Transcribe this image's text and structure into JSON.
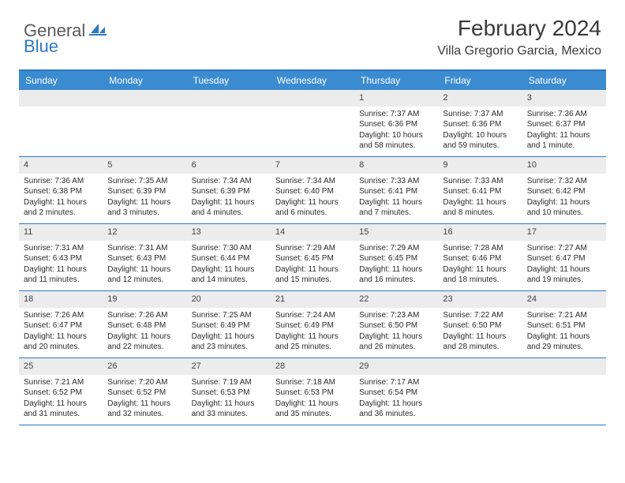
{
  "logo": {
    "general": "General",
    "blue": "Blue"
  },
  "title": "February 2024",
  "location": "Villa Gregorio Garcia, Mexico",
  "colors": {
    "header_bg": "#3b8bd0",
    "border": "#2e78c0",
    "daynum_bg": "#ececec",
    "text": "#2b2b2b"
  },
  "day_names": [
    "Sunday",
    "Monday",
    "Tuesday",
    "Wednesday",
    "Thursday",
    "Friday",
    "Saturday"
  ],
  "weeks": [
    [
      {
        "num": "",
        "lines": []
      },
      {
        "num": "",
        "lines": []
      },
      {
        "num": "",
        "lines": []
      },
      {
        "num": "",
        "lines": []
      },
      {
        "num": "1",
        "lines": [
          "Sunrise: 7:37 AM",
          "Sunset: 6:36 PM",
          "Daylight: 10 hours",
          "and 58 minutes."
        ]
      },
      {
        "num": "2",
        "lines": [
          "Sunrise: 7:37 AM",
          "Sunset: 6:36 PM",
          "Daylight: 10 hours",
          "and 59 minutes."
        ]
      },
      {
        "num": "3",
        "lines": [
          "Sunrise: 7:36 AM",
          "Sunset: 6:37 PM",
          "Daylight: 11 hours",
          "and 1 minute."
        ]
      }
    ],
    [
      {
        "num": "4",
        "lines": [
          "Sunrise: 7:36 AM",
          "Sunset: 6:38 PM",
          "Daylight: 11 hours",
          "and 2 minutes."
        ]
      },
      {
        "num": "5",
        "lines": [
          "Sunrise: 7:35 AM",
          "Sunset: 6:39 PM",
          "Daylight: 11 hours",
          "and 3 minutes."
        ]
      },
      {
        "num": "6",
        "lines": [
          "Sunrise: 7:34 AM",
          "Sunset: 6:39 PM",
          "Daylight: 11 hours",
          "and 4 minutes."
        ]
      },
      {
        "num": "7",
        "lines": [
          "Sunrise: 7:34 AM",
          "Sunset: 6:40 PM",
          "Daylight: 11 hours",
          "and 6 minutes."
        ]
      },
      {
        "num": "8",
        "lines": [
          "Sunrise: 7:33 AM",
          "Sunset: 6:41 PM",
          "Daylight: 11 hours",
          "and 7 minutes."
        ]
      },
      {
        "num": "9",
        "lines": [
          "Sunrise: 7:33 AM",
          "Sunset: 6:41 PM",
          "Daylight: 11 hours",
          "and 8 minutes."
        ]
      },
      {
        "num": "10",
        "lines": [
          "Sunrise: 7:32 AM",
          "Sunset: 6:42 PM",
          "Daylight: 11 hours",
          "and 10 minutes."
        ]
      }
    ],
    [
      {
        "num": "11",
        "lines": [
          "Sunrise: 7:31 AM",
          "Sunset: 6:43 PM",
          "Daylight: 11 hours",
          "and 11 minutes."
        ]
      },
      {
        "num": "12",
        "lines": [
          "Sunrise: 7:31 AM",
          "Sunset: 6:43 PM",
          "Daylight: 11 hours",
          "and 12 minutes."
        ]
      },
      {
        "num": "13",
        "lines": [
          "Sunrise: 7:30 AM",
          "Sunset: 6:44 PM",
          "Daylight: 11 hours",
          "and 14 minutes."
        ]
      },
      {
        "num": "14",
        "lines": [
          "Sunrise: 7:29 AM",
          "Sunset: 6:45 PM",
          "Daylight: 11 hours",
          "and 15 minutes."
        ]
      },
      {
        "num": "15",
        "lines": [
          "Sunrise: 7:29 AM",
          "Sunset: 6:45 PM",
          "Daylight: 11 hours",
          "and 16 minutes."
        ]
      },
      {
        "num": "16",
        "lines": [
          "Sunrise: 7:28 AM",
          "Sunset: 6:46 PM",
          "Daylight: 11 hours",
          "and 18 minutes."
        ]
      },
      {
        "num": "17",
        "lines": [
          "Sunrise: 7:27 AM",
          "Sunset: 6:47 PM",
          "Daylight: 11 hours",
          "and 19 minutes."
        ]
      }
    ],
    [
      {
        "num": "18",
        "lines": [
          "Sunrise: 7:26 AM",
          "Sunset: 6:47 PM",
          "Daylight: 11 hours",
          "and 20 minutes."
        ]
      },
      {
        "num": "19",
        "lines": [
          "Sunrise: 7:26 AM",
          "Sunset: 6:48 PM",
          "Daylight: 11 hours",
          "and 22 minutes."
        ]
      },
      {
        "num": "20",
        "lines": [
          "Sunrise: 7:25 AM",
          "Sunset: 6:49 PM",
          "Daylight: 11 hours",
          "and 23 minutes."
        ]
      },
      {
        "num": "21",
        "lines": [
          "Sunrise: 7:24 AM",
          "Sunset: 6:49 PM",
          "Daylight: 11 hours",
          "and 25 minutes."
        ]
      },
      {
        "num": "22",
        "lines": [
          "Sunrise: 7:23 AM",
          "Sunset: 6:50 PM",
          "Daylight: 11 hours",
          "and 26 minutes."
        ]
      },
      {
        "num": "23",
        "lines": [
          "Sunrise: 7:22 AM",
          "Sunset: 6:50 PM",
          "Daylight: 11 hours",
          "and 28 minutes."
        ]
      },
      {
        "num": "24",
        "lines": [
          "Sunrise: 7:21 AM",
          "Sunset: 6:51 PM",
          "Daylight: 11 hours",
          "and 29 minutes."
        ]
      }
    ],
    [
      {
        "num": "25",
        "lines": [
          "Sunrise: 7:21 AM",
          "Sunset: 6:52 PM",
          "Daylight: 11 hours",
          "and 31 minutes."
        ]
      },
      {
        "num": "26",
        "lines": [
          "Sunrise: 7:20 AM",
          "Sunset: 6:52 PM",
          "Daylight: 11 hours",
          "and 32 minutes."
        ]
      },
      {
        "num": "27",
        "lines": [
          "Sunrise: 7:19 AM",
          "Sunset: 6:53 PM",
          "Daylight: 11 hours",
          "and 33 minutes."
        ]
      },
      {
        "num": "28",
        "lines": [
          "Sunrise: 7:18 AM",
          "Sunset: 6:53 PM",
          "Daylight: 11 hours",
          "and 35 minutes."
        ]
      },
      {
        "num": "29",
        "lines": [
          "Sunrise: 7:17 AM",
          "Sunset: 6:54 PM",
          "Daylight: 11 hours",
          "and 36 minutes."
        ]
      },
      {
        "num": "",
        "lines": []
      },
      {
        "num": "",
        "lines": []
      }
    ]
  ]
}
